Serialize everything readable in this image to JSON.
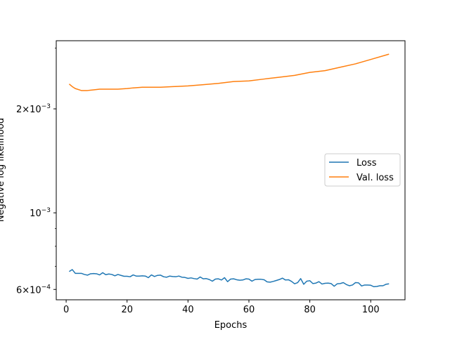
{
  "chart_data": {
    "type": "line",
    "xlabel": "Epochs",
    "ylabel": "Negative log likelihood",
    "xlim": [
      -3.25,
      111.25
    ],
    "ylim": [
      0.00056,
      0.00315
    ],
    "yscale": "log",
    "grid": false,
    "legend_position": "center-right",
    "x_ticks": [
      {
        "value": 0,
        "label": "0"
      },
      {
        "value": 20,
        "label": "20"
      },
      {
        "value": 40,
        "label": "40"
      },
      {
        "value": 60,
        "label": "60"
      },
      {
        "value": 80,
        "label": "80"
      },
      {
        "value": 100,
        "label": "100"
      }
    ],
    "y_major_ticks": [
      {
        "value": 0.0006,
        "base": "6",
        "exp": "−4"
      },
      {
        "value": 0.001,
        "base": "",
        "exp": "−3"
      },
      {
        "value": 0.002,
        "base": "2",
        "exp": "−3"
      }
    ],
    "y_minor_ticks": [
      0.0007,
      0.0008,
      0.0009,
      0.003
    ],
    "series": [
      {
        "name": "Loss",
        "color": "#1f77b4",
        "x": [
          1,
          2,
          3,
          4,
          5,
          6,
          7,
          8,
          9,
          10,
          11,
          12,
          13,
          14,
          15,
          16,
          17,
          18,
          19,
          20,
          21,
          22,
          23,
          24,
          25,
          26,
          27,
          28,
          29,
          30,
          31,
          32,
          33,
          34,
          35,
          36,
          37,
          38,
          39,
          40,
          41,
          42,
          43,
          44,
          45,
          46,
          47,
          48,
          49,
          50,
          51,
          52,
          53,
          54,
          55,
          56,
          57,
          58,
          59,
          60,
          61,
          62,
          63,
          64,
          65,
          66,
          67,
          68,
          69,
          70,
          71,
          72,
          73,
          74,
          75,
          76,
          77,
          78,
          79,
          80,
          81,
          82,
          83,
          84,
          85,
          86,
          87,
          88,
          89,
          90,
          91,
          92,
          93,
          94,
          95,
          96,
          97,
          98,
          99,
          100,
          101,
          102,
          103,
          104,
          105,
          106
        ],
        "y": [
          0.000676,
          0.000685,
          0.000668,
          0.000668,
          0.000668,
          0.000663,
          0.00066,
          0.000666,
          0.000667,
          0.000666,
          0.000661,
          0.000671,
          0.000662,
          0.000665,
          0.000663,
          0.000657,
          0.000663,
          0.000659,
          0.000655,
          0.000655,
          0.000653,
          0.000661,
          0.000656,
          0.000656,
          0.000657,
          0.000656,
          0.000649,
          0.000661,
          0.000654,
          0.000659,
          0.00066,
          0.000653,
          0.000651,
          0.000656,
          0.000654,
          0.000653,
          0.000656,
          0.000651,
          0.00065,
          0.000646,
          0.000648,
          0.000645,
          0.000643,
          0.000652,
          0.000644,
          0.000645,
          0.000641,
          0.000634,
          0.000643,
          0.000644,
          0.000639,
          0.000649,
          0.000632,
          0.000643,
          0.000644,
          0.00064,
          0.000638,
          0.000639,
          0.000644,
          0.000643,
          0.000634,
          0.000641,
          0.000642,
          0.000642,
          0.00064,
          0.000631,
          0.00063,
          0.000633,
          0.000637,
          0.000641,
          0.000647,
          0.000639,
          0.00064,
          0.000633,
          0.000623,
          0.000628,
          0.000645,
          0.000621,
          0.000634,
          0.000636,
          0.000624,
          0.000626,
          0.000632,
          0.000622,
          0.000625,
          0.000626,
          0.000624,
          0.000613,
          0.000623,
          0.000624,
          0.000628,
          0.00062,
          0.000615,
          0.000618,
          0.000628,
          0.000627,
          0.000614,
          0.000618,
          0.000618,
          0.000617,
          0.000611,
          0.000612,
          0.000615,
          0.000615,
          0.000621,
          0.000623
        ]
      },
      {
        "name": "Val. loss",
        "color": "#ff7f0e",
        "x": [
          1,
          2,
          3,
          5,
          7,
          9,
          11,
          14,
          17,
          20,
          22,
          25,
          28,
          31,
          35,
          40,
          45,
          50,
          55,
          60,
          65,
          70,
          75,
          80,
          85,
          90,
          95,
          100,
          106
        ],
        "y": [
          0.00236,
          0.00232,
          0.00229,
          0.00226,
          0.00226,
          0.00227,
          0.00228,
          0.00228,
          0.00228,
          0.00229,
          0.0023,
          0.00231,
          0.00231,
          0.00231,
          0.00232,
          0.00233,
          0.00235,
          0.00237,
          0.0024,
          0.00241,
          0.00244,
          0.00247,
          0.0025,
          0.00255,
          0.00258,
          0.00264,
          0.0027,
          0.00278,
          0.00288
        ]
      }
    ]
  }
}
